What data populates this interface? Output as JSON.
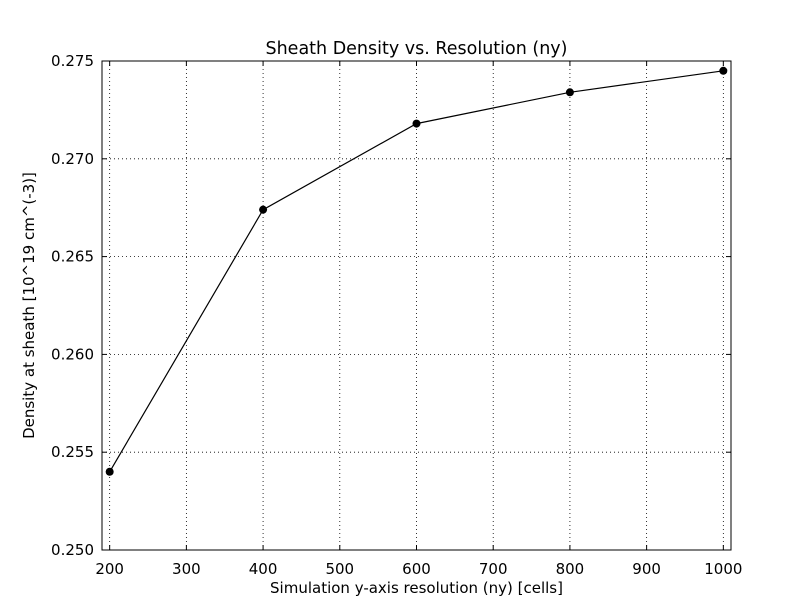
{
  "chart_data": {
    "type": "line",
    "title": "Sheath Density vs. Resolution (ny)",
    "xlabel": "Simulation y-axis resolution (ny) [cells]",
    "ylabel": "Density at sheath [10^19 cm^(-3)]",
    "xlim": [
      190,
      1010
    ],
    "ylim": [
      0.25,
      0.275
    ],
    "xticks": [
      200,
      300,
      400,
      500,
      600,
      700,
      800,
      900,
      1000
    ],
    "xtick_labels": [
      "200",
      "300",
      "400",
      "500",
      "600",
      "700",
      "800",
      "900",
      "1000"
    ],
    "yticks": [
      0.25,
      0.255,
      0.26,
      0.265,
      0.27,
      0.275
    ],
    "ytick_labels": [
      "0.250",
      "0.255",
      "0.260",
      "0.265",
      "0.270",
      "0.275"
    ],
    "grid": true,
    "legend": "none",
    "series": [
      {
        "x": [
          200,
          400,
          600,
          800,
          1000
        ],
        "y": [
          0.254,
          0.2674,
          0.2718,
          0.2734,
          0.2745
        ],
        "color": "#000000",
        "marker": "circle"
      }
    ]
  }
}
